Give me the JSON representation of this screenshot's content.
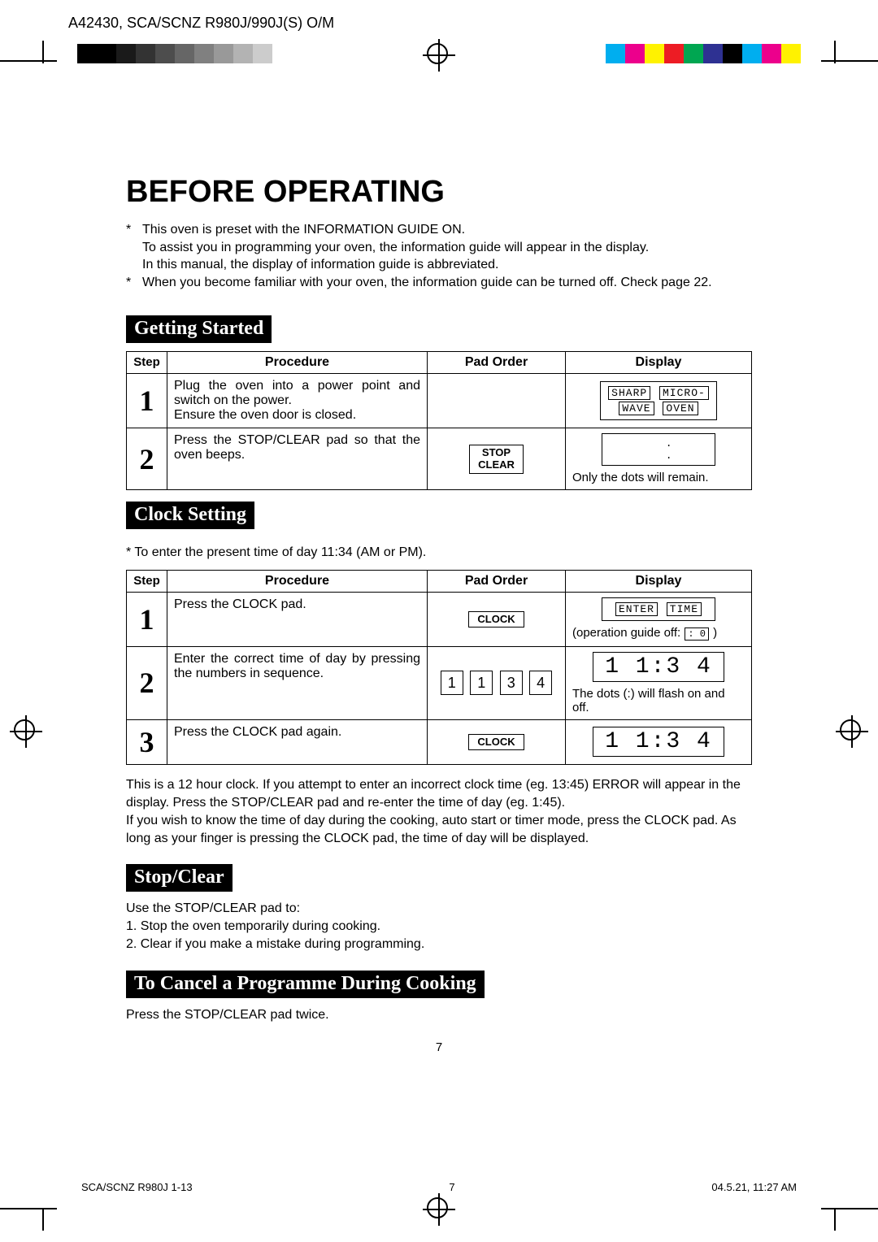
{
  "header": "A42430, SCA/SCNZ R980J/990J(S) O/M",
  "gray_swatches": [
    "#000000",
    "#000000",
    "#1a1a1a",
    "#333333",
    "#4d4d4d",
    "#666666",
    "#808080",
    "#999999",
    "#b3b3b3",
    "#cccccc"
  ],
  "color_swatches": [
    "#00aeef",
    "#ec008c",
    "#fff200",
    "#ed1c24",
    "#00a651",
    "#2e3192",
    "#000000",
    "#00aeef",
    "#ec008c",
    "#fff200"
  ],
  "title": "BEFORE OPERATING",
  "intro": {
    "l1": "This oven is preset with the INFORMATION GUIDE ON.",
    "l2": "To assist you in programming your oven, the information guide will appear in the display.",
    "l3": "In this manual, the display of information guide is abbreviated.",
    "l4": "When you become familiar with your oven, the information guide can be turned off. Check page 22."
  },
  "sections": {
    "getting_started": "Getting Started",
    "clock_setting": "Clock Setting",
    "stop_clear": "Stop/Clear",
    "cancel_prog": "To Cancel a Programme During Cooking"
  },
  "table_headers": {
    "step": "Step",
    "procedure": "Procedure",
    "pad_order": "Pad Order",
    "display": "Display"
  },
  "t1": {
    "r1": {
      "step": "1",
      "proc": "Plug the oven into a power point and switch on the power.\nEnsure the oven door is closed.",
      "disp_words": [
        "SHARP",
        "MICRO-",
        "WAVE",
        "OVEN"
      ]
    },
    "r2": {
      "step": "2",
      "proc": "Press the STOP/CLEAR pad so that the oven beeps.",
      "pad_label": "STOP\nCLEAR",
      "disp_note": "Only the dots will remain."
    }
  },
  "clock_note": "* To enter the present time of day 11:34 (AM or PM).",
  "t2": {
    "r1": {
      "step": "1",
      "proc": "Press the CLOCK pad.",
      "pad_label": "CLOCK",
      "disp_words": [
        "ENTER",
        "TIME"
      ],
      "disp_extra_prefix": "(operation guide off:",
      "disp_extra_val": ": 0",
      "disp_extra_suffix": ")"
    },
    "r2": {
      "step": "2",
      "proc": "Enter the correct time of day by pressing the numbers in sequence.",
      "keys": [
        "1",
        "1",
        "3",
        "4"
      ],
      "seg": "1 1:3 4",
      "disp_note": "The dots (:) will flash on and off."
    },
    "r3": {
      "step": "3",
      "proc": "Press the CLOCK pad again.",
      "pad_label": "CLOCK",
      "seg": "1 1:3 4"
    }
  },
  "clock_body": "This is a 12 hour clock. If you attempt to enter an incorrect clock time (eg. 13:45)  ERROR will appear in the display. Press the STOP/CLEAR pad and re-enter the time of day (eg. 1:45).\nIf you wish to know the time of day during the cooking, auto start or timer mode, press the CLOCK pad. As long as your finger is pressing the CLOCK pad, the time of day will be displayed.",
  "stopclear_body": {
    "intro": "Use the STOP/CLEAR pad to:",
    "l1": "1. Stop the oven temporarily during cooking.",
    "l2": "2. Clear if you make a mistake during programming."
  },
  "cancel_body": "Press the STOP/CLEAR pad twice.",
  "page_num": "7",
  "footer": {
    "left": "SCA/SCNZ R980J 1-13",
    "mid": "7",
    "right": "04.5.21, 11:27 AM"
  }
}
